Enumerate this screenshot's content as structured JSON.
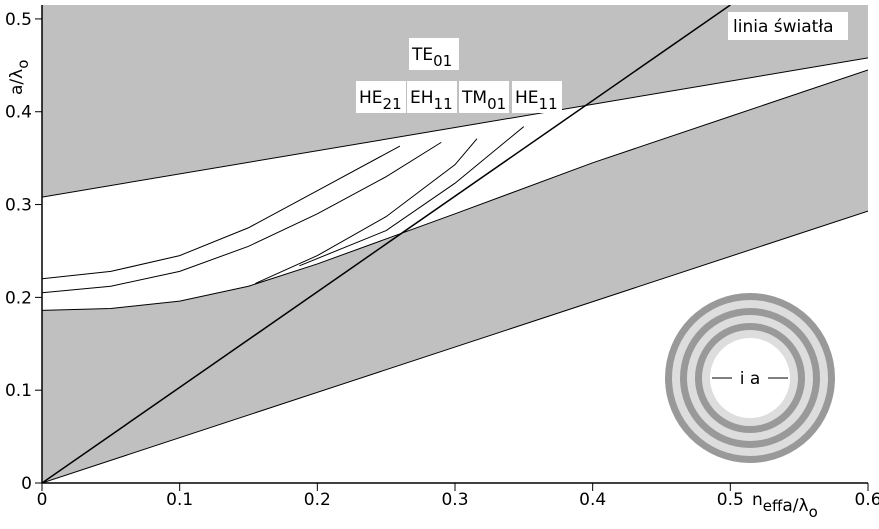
{
  "chart_data": {
    "type": "band",
    "xlim": [
      0,
      0.6
    ],
    "ylim": [
      0,
      0.515
    ],
    "xticks": [
      0,
      0.1,
      0.2,
      0.3,
      0.4,
      0.5,
      0.6
    ],
    "yticks": [
      0,
      0.1,
      0.2,
      0.3,
      0.4,
      0.5
    ],
    "xlabel": {
      "pre": "n",
      "pre_sub": "eff",
      "text": "a/λ",
      "sub": "o"
    },
    "ylabel": {
      "text": "a/λ",
      "sub": "o"
    },
    "fill_color": "#c0c0c0",
    "line_color": "#000000",
    "bands": [
      {
        "x": [
          0,
          0.6
        ],
        "values": [
          0.308,
          0.458
        ],
        "fill_to": "top"
      },
      {
        "x": [
          0,
          0.05,
          0.1,
          0.15,
          0.2,
          0.3,
          0.4,
          0.5,
          0.6
        ],
        "values": [
          0.186,
          0.188,
          0.196,
          0.212,
          0.236,
          0.29,
          0.345,
          0.395,
          0.445
        ],
        "fill_to": "next"
      },
      {
        "x": [
          0,
          0.6
        ],
        "values": [
          0,
          0.293
        ]
      }
    ],
    "series": [
      {
        "x": [
          0,
          0.5
        ],
        "values": [
          0,
          0.515
        ]
      },
      {
        "x": [
          0,
          0.05,
          0.1,
          0.15,
          0.2,
          0.26
        ],
        "values": [
          0.22,
          0.228,
          0.245,
          0.275,
          0.315,
          0.363
        ]
      },
      {
        "x": [
          0,
          0.05,
          0.1,
          0.15,
          0.2,
          0.25,
          0.29
        ],
        "values": [
          0.205,
          0.212,
          0.228,
          0.255,
          0.29,
          0.33,
          0.367
        ]
      },
      {
        "x": [
          0.155,
          0.2,
          0.25,
          0.3,
          0.316
        ],
        "values": [
          0.215,
          0.245,
          0.287,
          0.343,
          0.371
        ]
      },
      {
        "x": [
          0.187,
          0.25,
          0.3,
          0.35
        ],
        "values": [
          0.234,
          0.272,
          0.323,
          0.384
        ]
      }
    ],
    "annotations": [
      {
        "text": "TE",
        "sub": "01"
      },
      {
        "text": "HE",
        "sub": "21"
      },
      {
        "text": "EH",
        "sub": "11"
      },
      {
        "text": "TM",
        "sub": "01"
      },
      {
        "text": "HE",
        "sub": "11"
      }
    ],
    "light_line_label": "linia światła",
    "inset_label": "i a"
  }
}
